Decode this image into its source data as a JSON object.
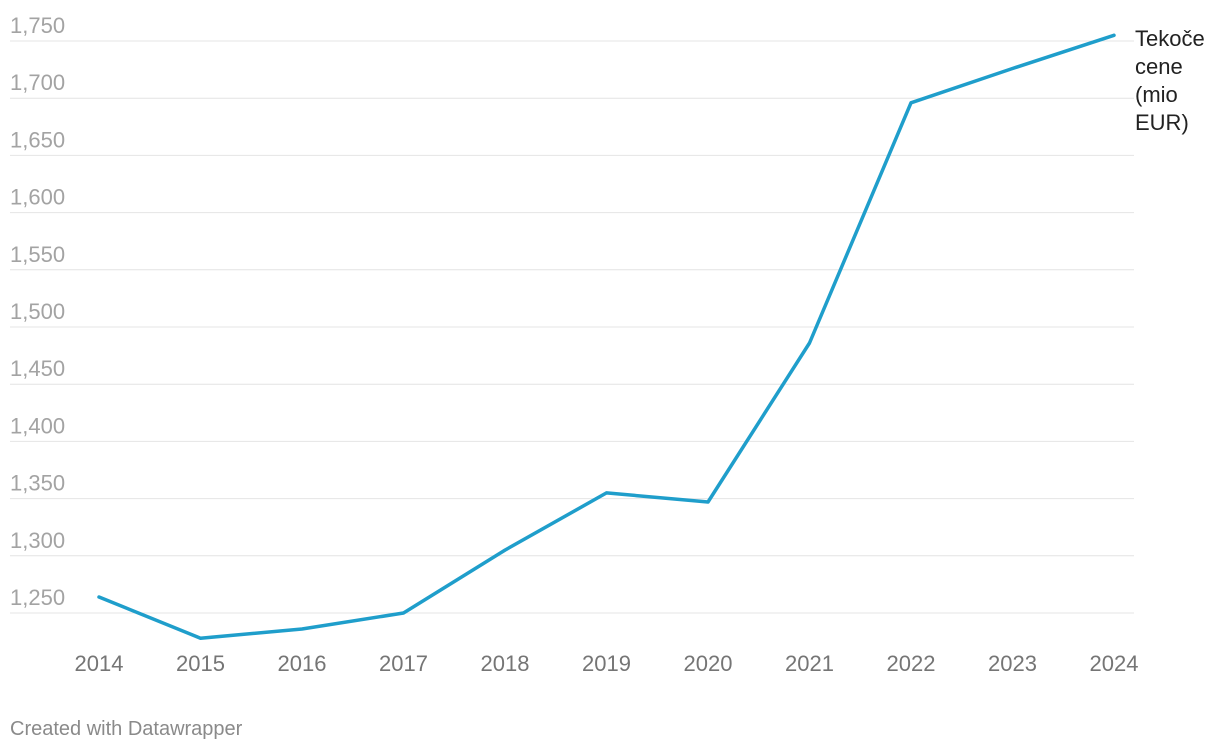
{
  "chart_data": {
    "type": "line",
    "title": "",
    "xlabel": "",
    "ylabel": "",
    "x": [
      "2014",
      "2015",
      "2016",
      "2017",
      "2018",
      "2019",
      "2020",
      "2021",
      "2022",
      "2023",
      "2024"
    ],
    "series": [
      {
        "name": "Tekoče cene (mio EUR)",
        "color": "#1f9ecb",
        "values": [
          1264,
          1228,
          1236,
          1250,
          1305,
          1355,
          1347,
          1486,
          1696,
          1726,
          1755
        ]
      }
    ],
    "y_ticks": [
      "1,250",
      "1,300",
      "1,350",
      "1,400",
      "1,450",
      "1,500",
      "1,550",
      "1,600",
      "1,650",
      "1,700",
      "1,750"
    ],
    "ylim": [
      1225,
      1760
    ],
    "grid": true,
    "legend": "direct label at line end (right)"
  },
  "footer": {
    "credit": "Created with Datawrapper"
  }
}
